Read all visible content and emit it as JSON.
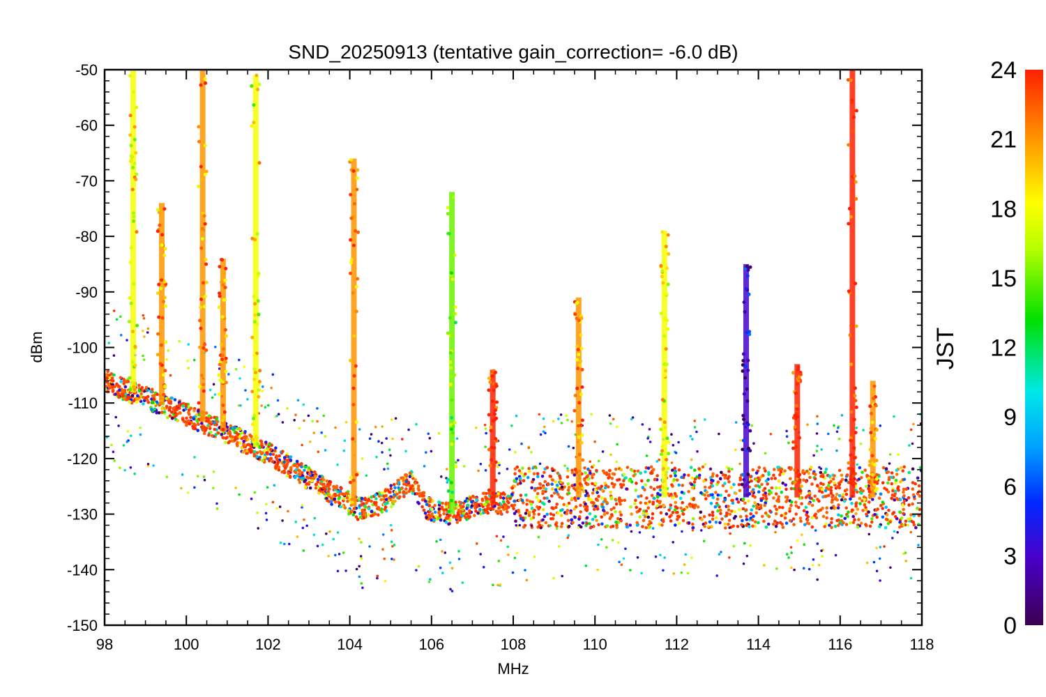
{
  "chart_data": {
    "type": "scatter",
    "title": "SND_20250913 (tentative gain_correction= -6.0 dB)",
    "xlabel": "MHz",
    "ylabel": "dBm",
    "xlim": [
      98,
      118
    ],
    "ylim": [
      -150,
      -50
    ],
    "x_ticks": [
      "98",
      "100",
      "102",
      "104",
      "106",
      "108",
      "110",
      "112",
      "114",
      "116",
      "118"
    ],
    "y_ticks": [
      "-50",
      "-60",
      "-70",
      "-80",
      "-90",
      "-100",
      "-110",
      "-120",
      "-130",
      "-140",
      "-150"
    ],
    "colorbar": {
      "label": "JST",
      "range": [
        0,
        24
      ],
      "ticks": [
        "24",
        "21",
        "18",
        "15",
        "12",
        "9",
        "6",
        "3",
        "0"
      ]
    },
    "noise_floor": [
      {
        "x": 98.0,
        "y": -106
      },
      {
        "x": 100.0,
        "y": -112
      },
      {
        "x": 102.0,
        "y": -119
      },
      {
        "x": 103.5,
        "y": -126
      },
      {
        "x": 104.2,
        "y": -129
      },
      {
        "x": 104.8,
        "y": -128
      },
      {
        "x": 105.5,
        "y": -124
      },
      {
        "x": 105.9,
        "y": -129
      },
      {
        "x": 106.5,
        "y": -130
      },
      {
        "x": 107.3,
        "y": -128
      },
      {
        "x": 107.8,
        "y": -128
      },
      {
        "x": 108.0,
        "y": -127
      },
      {
        "x": 112.0,
        "y": -127
      },
      {
        "x": 116.0,
        "y": -127
      },
      {
        "x": 118.0,
        "y": -127
      }
    ],
    "signals": [
      {
        "freq": 98.7,
        "peak_dbm": -50,
        "jst": 18
      },
      {
        "freq": 99.4,
        "peak_dbm": -74,
        "jst": 21
      },
      {
        "freq": 100.4,
        "peak_dbm": -50,
        "jst": 21
      },
      {
        "freq": 100.9,
        "peak_dbm": -84,
        "jst": 21
      },
      {
        "freq": 101.7,
        "peak_dbm": -51,
        "jst": 18
      },
      {
        "freq": 104.1,
        "peak_dbm": -66,
        "jst": 21
      },
      {
        "freq": 106.5,
        "peak_dbm": -72,
        "jst": 15
      },
      {
        "freq": 107.5,
        "peak_dbm": -104,
        "jst": 24
      },
      {
        "freq": 109.6,
        "peak_dbm": -91,
        "jst": 21
      },
      {
        "freq": 111.7,
        "peak_dbm": -79,
        "jst": 18
      },
      {
        "freq": 113.7,
        "peak_dbm": -85,
        "jst": 3
      },
      {
        "freq": 114.95,
        "peak_dbm": -103,
        "jst": 24
      },
      {
        "freq": 116.3,
        "peak_dbm": -50,
        "jst": 24
      },
      {
        "freq": 116.8,
        "peak_dbm": -106,
        "jst": 21
      }
    ]
  }
}
